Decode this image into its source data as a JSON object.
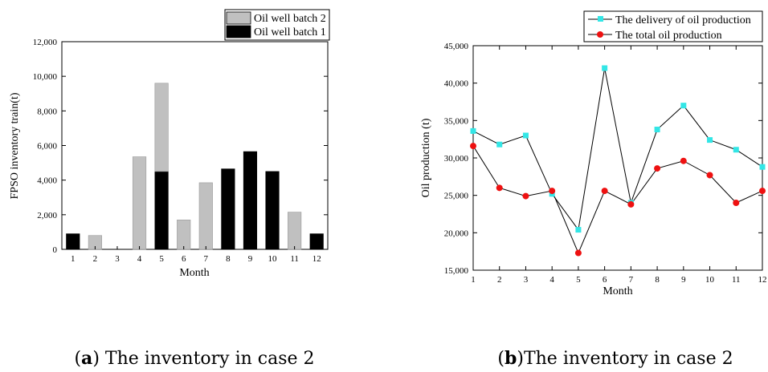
{
  "chart_data": [
    {
      "type": "bar",
      "stacked": true,
      "categories": [
        "1",
        "2",
        "3",
        "4",
        "5",
        "6",
        "7",
        "8",
        "9",
        "10",
        "11",
        "12"
      ],
      "series": [
        {
          "name": "Oil well batch 1",
          "color": "#000000",
          "values": [
            900,
            0,
            0,
            0,
            4500,
            0,
            0,
            4650,
            5650,
            4500,
            0,
            900
          ]
        },
        {
          "name": "Oil well batch 2",
          "color": "#c0c0c0",
          "values": [
            0,
            800,
            0,
            5350,
            5100,
            1700,
            3850,
            0,
            0,
            0,
            2150,
            0
          ]
        }
      ],
      "legend_order": [
        "Oil well batch 2",
        "Oil well batch 1"
      ],
      "yticks": [
        "0",
        "2,000",
        "4,000",
        "6,000",
        "8,000",
        "10,000",
        "12,000"
      ],
      "ylim": [
        0,
        12000
      ],
      "xlabel": "Month",
      "ylabel": "FPSO inventory train(t)",
      "legend_position": "top-right",
      "caption_bold": "a",
      "caption_rest": ") The inventory in case 2",
      "caption_open": "("
    },
    {
      "type": "line",
      "x": [
        "1",
        "2",
        "3",
        "4",
        "5",
        "6",
        "7",
        "8",
        "9",
        "10",
        "11",
        "12"
      ],
      "series": [
        {
          "name": "The delivery of oil production",
          "color": "#33e6e6",
          "marker": "square",
          "values": [
            33600,
            31800,
            33000,
            25200,
            20400,
            42000,
            24000,
            33800,
            37000,
            32400,
            31100,
            28800
          ]
        },
        {
          "name": "The total oil production",
          "color": "#ee1111",
          "marker": "circle",
          "values": [
            31600,
            26000,
            24900,
            25600,
            17300,
            25600,
            23800,
            28600,
            29600,
            27700,
            24000,
            25600
          ]
        }
      ],
      "yticks": [
        "15,000",
        "20,000",
        "25,000",
        "30,000",
        "35,000",
        "40,000",
        "45,000"
      ],
      "ylim": [
        15000,
        45000
      ],
      "xlabel": "Month",
      "ylabel": "Oil production (t)",
      "legend_position": "top-right",
      "caption_bold": "b",
      "caption_rest": ")The inventory in case 2",
      "caption_open": "("
    }
  ]
}
